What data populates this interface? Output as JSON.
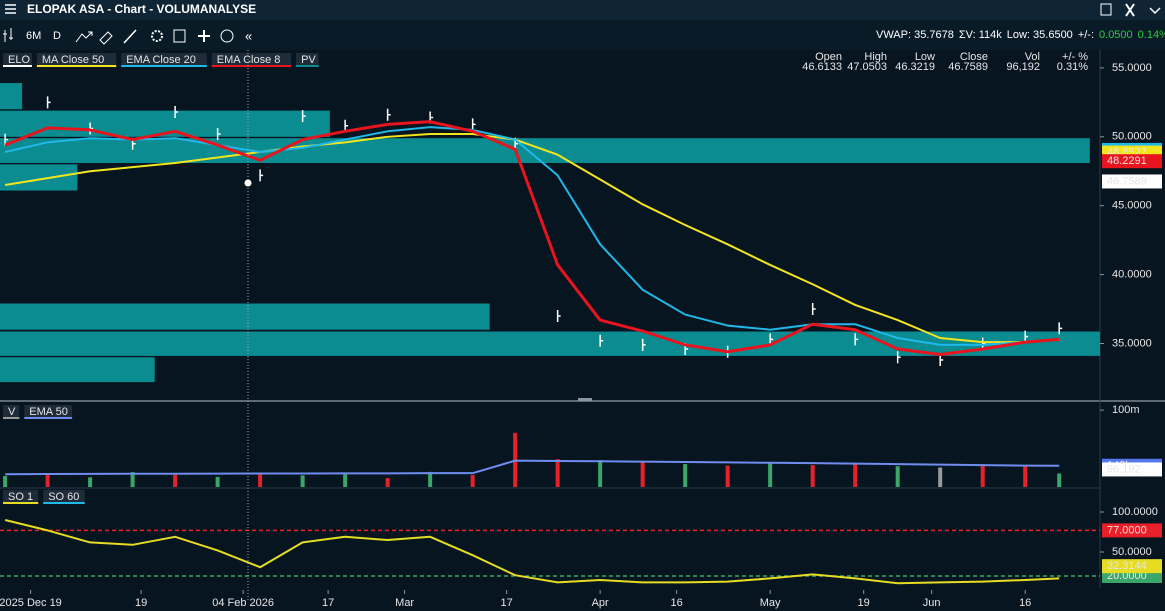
{
  "window": {
    "title": "ELOPAK ASA - Chart - VOLUMANALYSE"
  },
  "toolbar": {
    "period": "6M",
    "interval": "D",
    "collapse": "«",
    "stats": [
      "VWAP: 35.7678",
      "ΣV: 114k",
      "Low: 35.6500",
      "+/-:"
    ],
    "change": [
      "0.0500",
      "0.14%"
    ]
  },
  "quote": {
    "labels": [
      "Open",
      "High",
      "Low",
      "Close",
      "Vol",
      "+/- %"
    ],
    "values": [
      "46.6133",
      "47.0503",
      "46.3219",
      "46.7589",
      "96,192",
      "0.31%"
    ]
  },
  "chart_data": [
    {
      "type": "line",
      "xlim": [
        -0.6,
        128.8
      ],
      "ylim": [
        30.9,
        56.3
      ],
      "yticks": [
        {
          "value": 35,
          "label": "35.0000"
        },
        {
          "value": 40,
          "label": "40.0000"
        },
        {
          "value": 45,
          "label": "45.0000"
        },
        {
          "value": 50,
          "label": "50.0000"
        },
        {
          "value": 55,
          "label": "55.0000"
        }
      ],
      "x": [
        0,
        5,
        10,
        15,
        20,
        25,
        30,
        35,
        40,
        45,
        50,
        55,
        60,
        65,
        70,
        75,
        80,
        85,
        90,
        95,
        100,
        105,
        110,
        115,
        120,
        124
      ],
      "series": [
        {
          "name": "ELO",
          "color": "#ffffff",
          "mark": "tick",
          "values": [
            49.8,
            52.5,
            50.6,
            49.5,
            51.8,
            50.2,
            47.2,
            51.5,
            50.8,
            51.6,
            51.4,
            50.9,
            49.5,
            37.0,
            35.2,
            34.9,
            34.6,
            34.4,
            35.3,
            37.5,
            35.3,
            34.0,
            33.8,
            35.0,
            35.5,
            36.1
          ]
        },
        {
          "name": "MA Close 50",
          "color": "#f2e51e",
          "values": [
            46.5,
            47.0,
            47.5,
            47.8,
            48.1,
            48.5,
            48.9,
            49.3,
            49.6,
            50.0,
            50.2,
            50.2,
            49.8,
            48.7,
            46.9,
            45.1,
            43.6,
            42.2,
            40.7,
            39.3,
            37.8,
            36.7,
            35.4,
            35.1,
            35.1,
            35.3
          ]
        },
        {
          "name": "EMA Close 20",
          "color": "#1fb8e8",
          "values": [
            48.9,
            49.6,
            49.9,
            49.8,
            49.9,
            49.4,
            48.9,
            49.2,
            49.8,
            50.4,
            50.7,
            50.5,
            49.8,
            47.2,
            42.2,
            38.9,
            37.1,
            36.3,
            36.0,
            36.4,
            36.4,
            35.4,
            34.9,
            34.9,
            35.1,
            35.3
          ]
        },
        {
          "name": "EMA Close 8",
          "color": "#e8141e",
          "values": [
            49.4,
            50.65,
            50.5,
            49.8,
            50.4,
            49.4,
            48.3,
            49.8,
            50.4,
            50.9,
            51.1,
            50.4,
            49.1,
            40.7,
            36.7,
            35.9,
            34.9,
            34.4,
            34.9,
            36.4,
            36.0,
            34.6,
            34.2,
            34.6,
            35.1,
            35.3
          ]
        }
      ],
      "zones": {
        "name": "PV",
        "color": "#0b8c91",
        "bands": [
          {
            "from": 52.0,
            "to": 53.9,
            "end": 2
          },
          {
            "from": 50.0,
            "to": 51.9,
            "end": 38.2
          },
          {
            "from": 48.1,
            "to": 49.9,
            "end": 127.6
          },
          {
            "from": 46.1,
            "to": 48.0,
            "end": 8.5
          },
          {
            "from": 36.0,
            "to": 37.9,
            "end": 57
          },
          {
            "from": 34.1,
            "to": 35.87,
            "end": 128.8
          },
          {
            "from": 32.2,
            "to": 34.0,
            "end": 17.6
          }
        ]
      },
      "value_tags": [
        {
          "value": 49.0475,
          "color": "#1fb8e8"
        },
        {
          "value": 48.8527,
          "color": "#f2e51e"
        },
        {
          "value": 48.2291,
          "color": "#e8141e"
        },
        {
          "value": 46.7589,
          "color": "#ffffff"
        }
      ]
    },
    {
      "type": "bar",
      "log": true,
      "xlim": [
        -0.6,
        128.8
      ],
      "ylim": [
        12300,
        230000000
      ],
      "yticks": [
        {
          "value": 100000000,
          "label": "100m"
        }
      ],
      "x": [
        0,
        5,
        10,
        15,
        20,
        25,
        30,
        35,
        40,
        45,
        50,
        55,
        60,
        65,
        70,
        75,
        80,
        85,
        90,
        95,
        100,
        105,
        110,
        115,
        120,
        124
      ],
      "series": [
        {
          "name": "V",
          "color": "#9a9a9a",
          "values": [
            45000,
            60000,
            38000,
            70000,
            52000,
            40000,
            65000,
            48000,
            55000,
            35000,
            72000,
            50000,
            7000000,
            320000,
            280000,
            250000,
            180000,
            150000,
            210000,
            160000,
            190000,
            140000,
            120000,
            170000,
            135000,
            60000
          ],
          "colors": [
            "#3aa66a",
            "#e8202a",
            "#3aa66a",
            "#3aa66a",
            "#e8202a",
            "#3aa66a",
            "#e8202a",
            "#3aa66a",
            "#3aa66a",
            "#e8202a",
            "#3aa66a",
            "#e8202a",
            "#e8202a",
            "#e8202a",
            "#3aa66a",
            "#e8202a",
            "#3aa66a",
            "#e8202a",
            "#3aa66a",
            "#e8202a",
            "#e8202a",
            "#3aa66a",
            "#9a9a9a",
            "#e8202a",
            "#e8202a",
            "#3aa66a"
          ]
        },
        {
          "name": "EMA 50",
          "color": "#6f8cf0",
          "mark": "line",
          "values": [
            55000,
            56000,
            57000,
            58000,
            58000,
            59000,
            60000,
            60000,
            61000,
            61000,
            62000,
            62000,
            270000,
            260000,
            250000,
            240000,
            230000,
            220000,
            210000,
            200000,
            190000,
            180000,
            170000,
            160000,
            150000,
            148000
          ]
        }
      ],
      "value_tags": [
        {
          "value": 148000,
          "label": "148k",
          "color": "#5577ee"
        },
        {
          "value": 96192,
          "label": "96,192",
          "color": "#ffffff"
        }
      ]
    },
    {
      "type": "line",
      "xlim": [
        -0.6,
        128.8
      ],
      "ylim": [
        10,
        127.5
      ],
      "yticks": [
        {
          "value": 100,
          "label": "100.0000"
        },
        {
          "value": 50,
          "label": "50.0000"
        }
      ],
      "xticks": [
        {
          "value": 3,
          "label": "2025 Dec 19"
        },
        {
          "value": 16,
          "label": "19"
        },
        {
          "value": 28,
          "label": "04 Feb 2026"
        },
        {
          "value": 38,
          "label": "17"
        },
        {
          "value": 47,
          "label": "Mar"
        },
        {
          "value": 59,
          "label": "17"
        },
        {
          "value": 70,
          "label": "Apr"
        },
        {
          "value": 79,
          "label": "16"
        },
        {
          "value": 90,
          "label": "May"
        },
        {
          "value": 101,
          "label": "19"
        },
        {
          "value": 109,
          "label": "Jun"
        },
        {
          "value": 120,
          "label": "16"
        }
      ],
      "x": [
        0,
        5,
        10,
        15,
        20,
        25,
        30,
        35,
        40,
        45,
        50,
        55,
        60,
        65,
        70,
        75,
        80,
        85,
        90,
        95,
        100,
        105,
        110,
        115,
        120,
        124
      ],
      "legend_only": [
        {
          "name": "SO 60",
          "color": "#1fb8e8"
        }
      ],
      "series": [
        {
          "name": "SO 1",
          "color": "#e6dc22",
          "values": [
            90,
            77,
            62,
            59,
            69,
            52,
            31,
            62,
            69,
            65,
            69,
            46,
            21,
            12,
            15,
            12,
            12,
            13,
            17,
            22,
            17,
            11,
            12,
            13,
            15,
            17
          ]
        }
      ],
      "hlines": [
        {
          "value": 77,
          "label": "77.0000",
          "color": "#e8202a"
        },
        {
          "value": 20,
          "label": "20.0000",
          "color": "#3aa66a"
        }
      ],
      "value_tags": [
        {
          "value": 32.3144,
          "color": "#e6dc22"
        }
      ]
    }
  ]
}
